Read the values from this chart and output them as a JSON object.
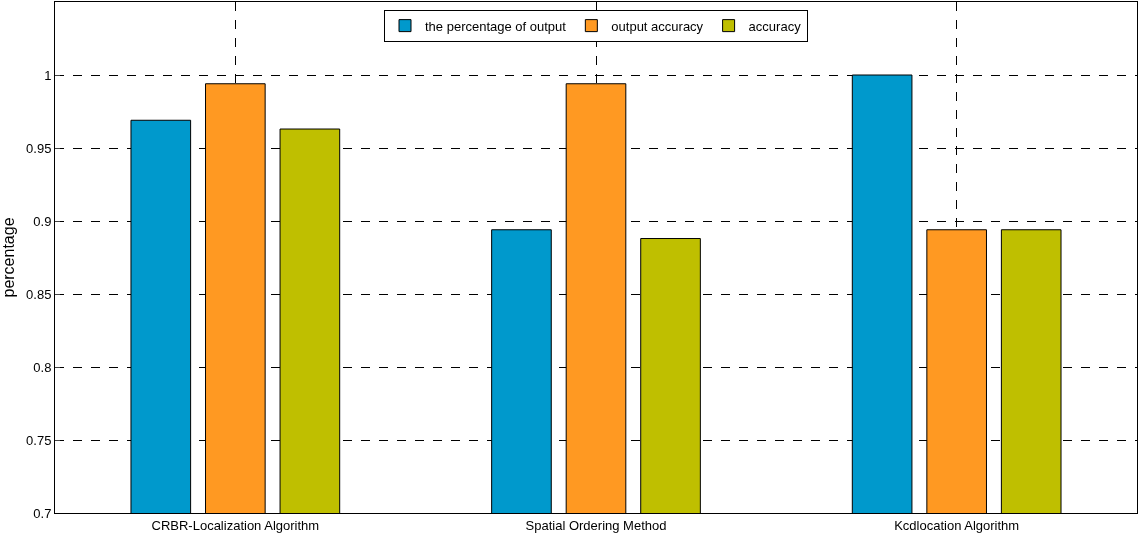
{
  "chart_data": {
    "type": "bar",
    "ylabel": "percentage",
    "categories": [
      "CRBR-Localization Algorithm",
      "Spatial Ordering Method",
      "Kcdlocation Algorithm"
    ],
    "series": [
      {
        "name": "the percentage of output",
        "color": "#0099cc",
        "values": [
          0.969,
          0.894,
          1.0
        ]
      },
      {
        "name": "output accuracy",
        "color": "#ff9922",
        "values": [
          0.994,
          0.994,
          0.894
        ]
      },
      {
        "name": "accuracy",
        "color": "#bfbf00",
        "values": [
          0.963,
          0.888,
          0.894
        ]
      }
    ],
    "ylim": [
      0.7,
      1.05
    ],
    "yticks": [
      0.7,
      0.75,
      0.8,
      0.85,
      0.9,
      0.95,
      1
    ],
    "grid": true,
    "legend": "top"
  }
}
